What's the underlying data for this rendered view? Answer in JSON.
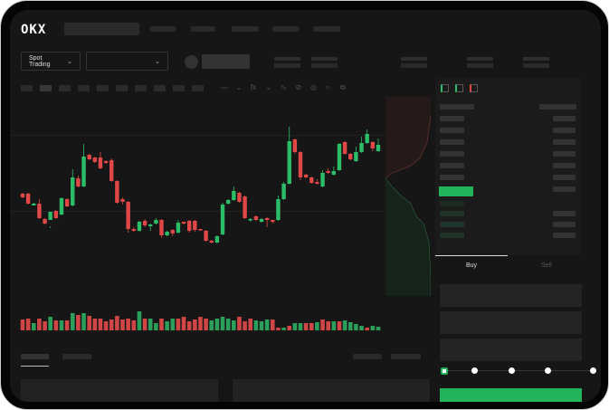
{
  "brand": {
    "logo": "OKX"
  },
  "toolbar": {
    "mode_label": "Spot Trading",
    "mode_icon": "chevron-down-icon",
    "pair_icon": "chevron-down-icon"
  },
  "order_form": {
    "tabs": [
      "Buy",
      "Sell"
    ],
    "active_tab": "Buy",
    "slider_percent": 0,
    "accent": "#23b35d"
  },
  "colors": {
    "up": "#2bbd67",
    "down": "#e04848",
    "background": "#161616"
  },
  "chart_data": {
    "type": "candlestick",
    "candles": [
      [
        97,
        93,
        98,
        92
      ],
      [
        97,
        86,
        98,
        85
      ],
      [
        84,
        86,
        87,
        84
      ],
      [
        86,
        70,
        91,
        69
      ],
      [
        69,
        64,
        70,
        63
      ],
      [
        68,
        77,
        61,
        59
      ],
      [
        78,
        70,
        79,
        69
      ],
      [
        74,
        92,
        93,
        73
      ],
      [
        91,
        83,
        92,
        82
      ],
      [
        84,
        115,
        124,
        83
      ],
      [
        114,
        105,
        117,
        104
      ],
      [
        105,
        138,
        152,
        104
      ],
      [
        140,
        135,
        141,
        134
      ],
      [
        137,
        132,
        138,
        131
      ],
      [
        137,
        125,
        143,
        124
      ],
      [
        133,
        131,
        134,
        130
      ],
      [
        134,
        111,
        136,
        110
      ],
      [
        111,
        87,
        112,
        86
      ],
      [
        91,
        88,
        93,
        85
      ],
      [
        88,
        58,
        89,
        54
      ],
      [
        58,
        56,
        60,
        55
      ],
      [
        56,
        66,
        67,
        55
      ],
      [
        67,
        62,
        69,
        60
      ],
      [
        61,
        63,
        64,
        56
      ],
      [
        64,
        68,
        70,
        63
      ],
      [
        68,
        51,
        69,
        48
      ],
      [
        51,
        55,
        56,
        50
      ],
      [
        57,
        53,
        58,
        50
      ],
      [
        54,
        65,
        68,
        53
      ],
      [
        66,
        64,
        66,
        63
      ],
      [
        67,
        56,
        68,
        54
      ],
      [
        67,
        57,
        68,
        55
      ],
      [
        58,
        57,
        58,
        56
      ],
      [
        56,
        45,
        57,
        44
      ],
      [
        45,
        43,
        46,
        42
      ],
      [
        43,
        50,
        51,
        42
      ],
      [
        52,
        85,
        87,
        51
      ],
      [
        86,
        90,
        91,
        85
      ],
      [
        90,
        100,
        105,
        89
      ],
      [
        98,
        88,
        99,
        87
      ],
      [
        94,
        70,
        95,
        69
      ],
      [
        68,
        69,
        70,
        66
      ],
      [
        72,
        68,
        73,
        67
      ],
      [
        66,
        69,
        70,
        65
      ],
      [
        70,
        68,
        71,
        60
      ],
      [
        68,
        66,
        68,
        64
      ],
      [
        68,
        91,
        95,
        67
      ],
      [
        91,
        108,
        110,
        90
      ],
      [
        108,
        155,
        171,
        107
      ],
      [
        157,
        143,
        158,
        141
      ],
      [
        143,
        115,
        144,
        112
      ],
      [
        118,
        115,
        119,
        114
      ],
      [
        115,
        109,
        116,
        108
      ],
      [
        110,
        108,
        113,
        107
      ],
      [
        105,
        120,
        123,
        104
      ],
      [
        122,
        120,
        125,
        119
      ],
      [
        118,
        122,
        127,
        117
      ],
      [
        123,
        152,
        153,
        122
      ],
      [
        154,
        141,
        155,
        140
      ],
      [
        141,
        135,
        142,
        134
      ],
      [
        133,
        143,
        149,
        132
      ],
      [
        143,
        153,
        160,
        142
      ],
      [
        153,
        163,
        168,
        152
      ],
      [
        154,
        147,
        155,
        144
      ],
      [
        144,
        151,
        158,
        143
      ]
    ],
    "volume": [
      [
        12,
        "down"
      ],
      [
        13,
        "down"
      ],
      [
        8,
        "up"
      ],
      [
        13,
        "down"
      ],
      [
        10,
        "down"
      ],
      [
        15,
        "up"
      ],
      [
        11,
        "down"
      ],
      [
        11,
        "up"
      ],
      [
        11,
        "down"
      ],
      [
        19,
        "up"
      ],
      [
        17,
        "down"
      ],
      [
        19,
        "up"
      ],
      [
        16,
        "down"
      ],
      [
        13,
        "down"
      ],
      [
        13,
        "down"
      ],
      [
        10,
        "down"
      ],
      [
        12,
        "down"
      ],
      [
        16,
        "down"
      ],
      [
        12,
        "down"
      ],
      [
        13,
        "down"
      ],
      [
        11,
        "down"
      ],
      [
        21,
        "up"
      ],
      [
        13,
        "down"
      ],
      [
        13,
        "up"
      ],
      [
        8,
        "up"
      ],
      [
        13,
        "down"
      ],
      [
        10,
        "up"
      ],
      [
        13,
        "up"
      ],
      [
        13,
        "down"
      ],
      [
        15,
        "down"
      ],
      [
        10,
        "down"
      ],
      [
        12,
        "down"
      ],
      [
        15,
        "down"
      ],
      [
        13,
        "down"
      ],
      [
        11,
        "up"
      ],
      [
        13,
        "up"
      ],
      [
        15,
        "up"
      ],
      [
        13,
        "up"
      ],
      [
        11,
        "up"
      ],
      [
        15,
        "down"
      ],
      [
        10,
        "down"
      ],
      [
        13,
        "down"
      ],
      [
        11,
        "up"
      ],
      [
        10,
        "up"
      ],
      [
        12,
        "up"
      ],
      [
        12,
        "down"
      ],
      [
        3,
        "down"
      ],
      [
        3,
        "up"
      ],
      [
        5,
        "down"
      ],
      [
        8,
        "up"
      ],
      [
        8,
        "up"
      ],
      [
        8,
        "down"
      ],
      [
        8,
        "down"
      ],
      [
        9,
        "up"
      ],
      [
        12,
        "down"
      ],
      [
        10,
        "down"
      ],
      [
        10,
        "up"
      ],
      [
        10,
        "down"
      ],
      [
        11,
        "up"
      ],
      [
        9,
        "up"
      ],
      [
        7,
        "up"
      ],
      [
        5,
        "up"
      ],
      [
        3,
        "down"
      ],
      [
        5,
        "up"
      ],
      [
        4,
        "up"
      ]
    ],
    "grid": true
  }
}
